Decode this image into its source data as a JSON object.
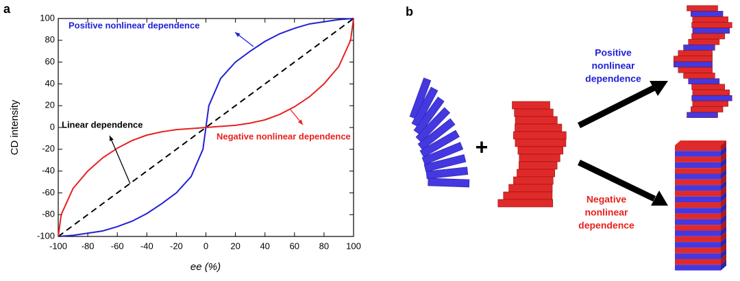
{
  "chart_data": {
    "type": "line",
    "panel_label": "a",
    "x_label": "ee (%)",
    "y_label": "CD intensity",
    "xlim": [
      -100,
      100
    ],
    "ylim": [
      -100,
      100
    ],
    "xticks": [
      -100,
      -80,
      -60,
      -40,
      -20,
      0,
      20,
      40,
      60,
      80,
      100
    ],
    "yticks": [
      -100,
      -80,
      -60,
      -40,
      -20,
      0,
      20,
      40,
      60,
      80,
      100
    ],
    "series": [
      {
        "name": "Linear dependence",
        "color": "#000000",
        "dashed": true,
        "x": [
          -100,
          100
        ],
        "values": [
          -100,
          100
        ]
      },
      {
        "name": "Positive nonlinear dependence",
        "color": "#1f1fd6",
        "dashed": false,
        "x": [
          -100,
          -90,
          -80,
          -70,
          -60,
          -50,
          -40,
          -30,
          -20,
          -10,
          -2,
          0,
          2,
          10,
          20,
          30,
          40,
          50,
          60,
          70,
          80,
          90,
          100
        ],
        "values": [
          -100,
          -99,
          -97,
          -95,
          -91,
          -86,
          -79,
          -70,
          -60,
          -45,
          -20,
          0,
          20,
          45,
          60,
          70,
          79,
          86,
          91,
          95,
          97,
          99,
          100
        ]
      },
      {
        "name": "Negative nonlinear dependence",
        "color": "#e8201e",
        "dashed": false,
        "x": [
          -100,
          -98,
          -90,
          -80,
          -70,
          -60,
          -50,
          -40,
          -30,
          -20,
          -10,
          0,
          10,
          20,
          30,
          40,
          50,
          60,
          70,
          80,
          90,
          98,
          100
        ],
        "values": [
          -100,
          -80,
          -56,
          -40,
          -28,
          -19,
          -12,
          -7,
          -4,
          -2,
          -1,
          0,
          1,
          2,
          4,
          7,
          12,
          19,
          28,
          40,
          56,
          80,
          100
        ]
      }
    ]
  },
  "diagram": {
    "panel_label": "b",
    "positive_label": [
      "Positive",
      "nonlinear",
      "dependence"
    ],
    "negative_label": [
      "Negative",
      "nonlinear",
      "dependence"
    ]
  }
}
